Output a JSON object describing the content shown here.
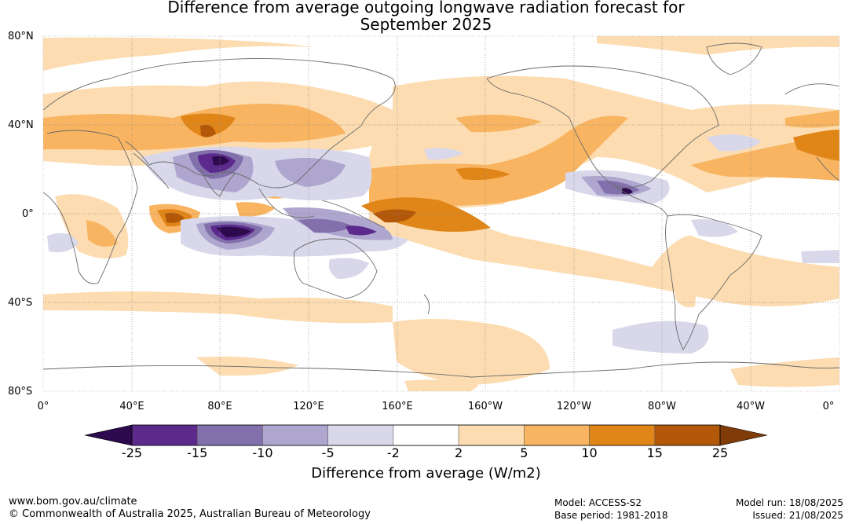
{
  "title_line1": "Difference from average outgoing longwave radiation forecast for",
  "title_line2": "September 2025",
  "lat_labels": [
    "80°N",
    "40°N",
    "0°",
    "40°S",
    "80°S"
  ],
  "lon_labels": [
    "0°",
    "40°E",
    "80°E",
    "120°E",
    "160°E",
    "160°W",
    "120°W",
    "80°W",
    "40°W",
    "0°"
  ],
  "colorbar": {
    "ticks": [
      "-25",
      "-15",
      "-10",
      "-5",
      "-2",
      "2",
      "5",
      "10",
      "15",
      "25"
    ],
    "colors": [
      "#2d0a4e",
      "#5b2a8c",
      "#8170ab",
      "#afa6cf",
      "#d9d8ea",
      "#ffffff",
      "#fcdcb0",
      "#f8b460",
      "#e08517",
      "#b35709",
      "#7f3b08"
    ],
    "label": "Difference from average (W/m2)"
  },
  "footer": {
    "url": "www.bom.gov.au/climate",
    "copyright": "© Commonwealth of Australia 2025, Australian Bureau of Meteorology",
    "model": "Model: ACCESS-S2",
    "base_period": "Base period: 1981-2018",
    "model_run": "Model run: 18/08/2025",
    "issued": "Issued: 21/08/2025"
  }
}
